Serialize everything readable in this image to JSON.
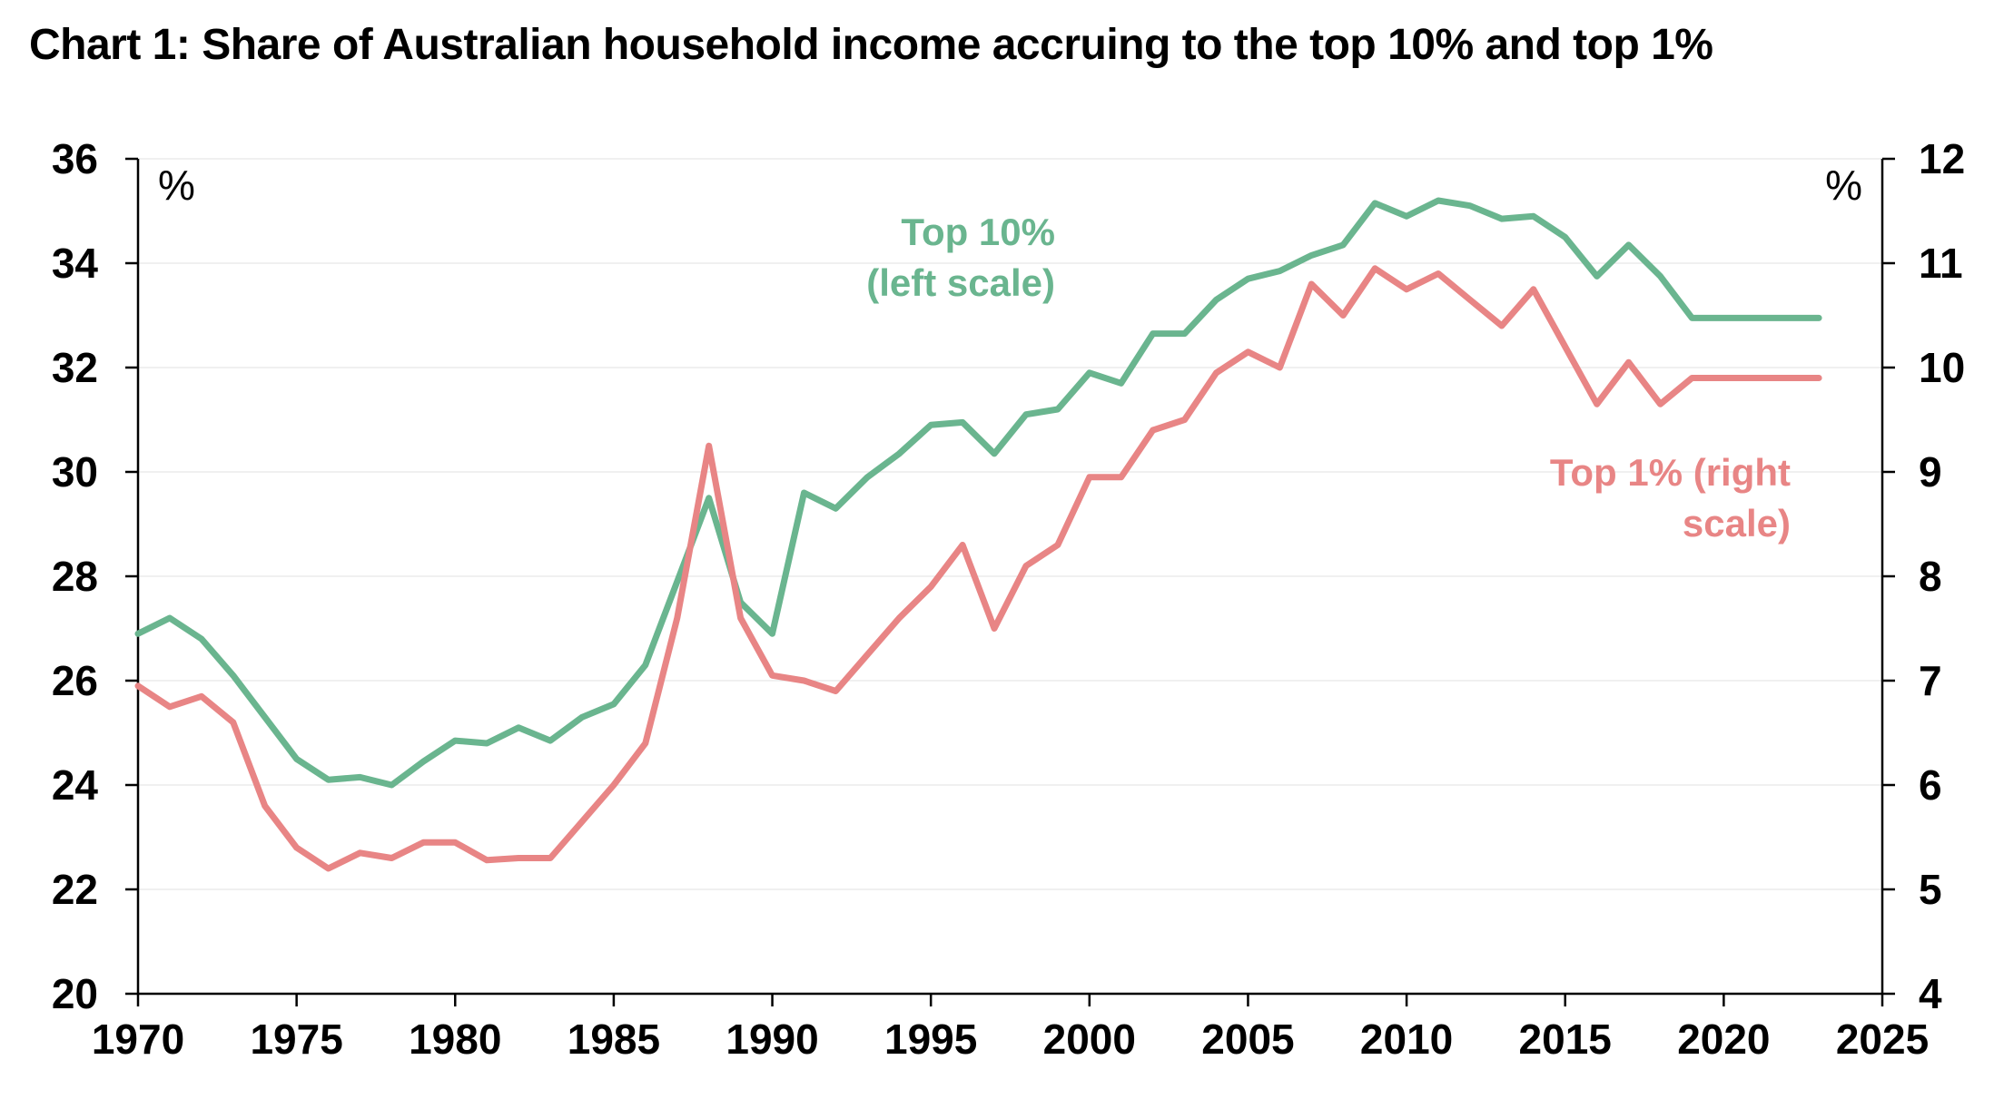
{
  "title": "Chart 1: Share of Australian household income accruing to the top 10% and top 1%",
  "chart_data": {
    "type": "line",
    "title": "Chart 1: Share of Australian household income accruing to the top 10% and top 1%",
    "x_ticks": [
      1970,
      1975,
      1980,
      1985,
      1990,
      1995,
      2000,
      2005,
      2010,
      2015,
      2020,
      2025
    ],
    "xlim": [
      1970,
      2025
    ],
    "left_axis": {
      "unit": "%",
      "ylim": [
        20,
        36
      ],
      "ticks": [
        20,
        22,
        24,
        26,
        28,
        30,
        32,
        34,
        36
      ]
    },
    "right_axis": {
      "unit": "%",
      "ylim": [
        4,
        12
      ],
      "ticks": [
        4,
        5,
        6,
        7,
        8,
        9,
        10,
        11,
        12
      ]
    },
    "grid": true,
    "series": [
      {
        "name": "Top 10% (left scale)",
        "axis": "left",
        "color": "#6ab58f",
        "label_lines": [
          "Top 10%",
          "(left scale)"
        ],
        "x": [
          1970,
          1971,
          1972,
          1973,
          1974,
          1975,
          1976,
          1977,
          1978,
          1979,
          1980,
          1981,
          1982,
          1983,
          1984,
          1985,
          1986,
          1987,
          1988,
          1989,
          1990,
          1991,
          1992,
          1993,
          1994,
          1995,
          1996,
          1997,
          1998,
          1999,
          2000,
          2001,
          2002,
          2003,
          2004,
          2005,
          2006,
          2007,
          2008,
          2009,
          2010,
          2011,
          2012,
          2013,
          2014,
          2015,
          2016,
          2017,
          2018,
          2019,
          2020,
          2021,
          2022,
          2023
        ],
        "y": [
          26.9,
          27.2,
          26.8,
          26.1,
          25.3,
          24.5,
          24.1,
          24.15,
          24.0,
          24.45,
          24.85,
          24.8,
          25.1,
          24.85,
          25.3,
          25.55,
          26.3,
          27.9,
          29.5,
          27.5,
          26.9,
          29.6,
          29.3,
          29.9,
          30.35,
          30.9,
          30.95,
          30.35,
          31.1,
          31.2,
          31.9,
          31.7,
          32.65,
          32.65,
          33.3,
          33.7,
          33.85,
          34.15,
          34.35,
          35.15,
          34.9,
          35.2,
          35.1,
          34.85,
          34.9,
          34.5,
          33.75,
          34.35,
          33.75,
          32.95,
          32.95,
          32.95,
          32.95,
          32.95
        ]
      },
      {
        "name": "Top 1% (right scale)",
        "axis": "right",
        "color": "#e88585",
        "label_lines": [
          "Top 1% (right",
          "scale)"
        ],
        "x": [
          1970,
          1971,
          1972,
          1973,
          1974,
          1975,
          1976,
          1977,
          1978,
          1979,
          1980,
          1981,
          1982,
          1983,
          1984,
          1985,
          1986,
          1987,
          1988,
          1989,
          1990,
          1991,
          1992,
          1993,
          1994,
          1995,
          1996,
          1997,
          1998,
          1999,
          2000,
          2001,
          2002,
          2003,
          2004,
          2005,
          2006,
          2007,
          2008,
          2009,
          2010,
          2011,
          2012,
          2013,
          2014,
          2015,
          2016,
          2017,
          2018,
          2019,
          2020,
          2021,
          2022,
          2023
        ],
        "y": [
          6.95,
          6.75,
          6.85,
          6.6,
          5.8,
          5.4,
          5.2,
          5.35,
          5.3,
          5.45,
          5.45,
          5.28,
          5.3,
          5.3,
          5.65,
          6.0,
          6.4,
          7.6,
          9.25,
          7.6,
          7.05,
          7.0,
          6.9,
          7.25,
          7.6,
          7.9,
          8.3,
          7.5,
          8.1,
          8.3,
          8.95,
          8.95,
          9.4,
          9.5,
          9.95,
          10.15,
          10.0,
          10.8,
          10.5,
          10.95,
          10.75,
          10.9,
          10.65,
          10.4,
          10.75,
          10.2,
          9.65,
          10.05,
          9.65,
          9.9,
          9.9,
          9.9,
          9.9,
          9.9
        ]
      }
    ]
  }
}
